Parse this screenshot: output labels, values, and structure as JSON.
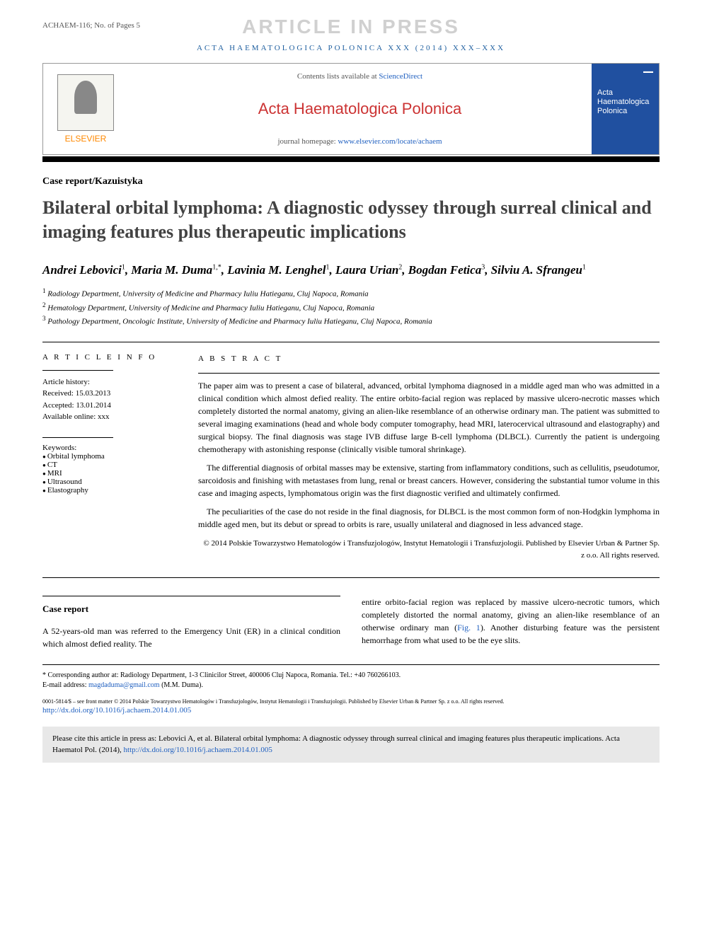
{
  "header": {
    "doc_id": "ACHAEM-116; No. of Pages 5",
    "watermark": "ARTICLE IN PRESS",
    "journal_ref": "ACTA HAEMATOLOGICA POLONICA XXX (2014) XXX–XXX",
    "contents_prefix": "Contents lists available at ",
    "contents_link": "ScienceDirect",
    "journal_title": "Acta Haematologica Polonica",
    "homepage_prefix": "journal homepage: ",
    "homepage_link": "www.elsevier.com/locate/achaem",
    "elsevier": "ELSEVIER",
    "cover_title": "Acta Haematologica Polonica"
  },
  "article": {
    "type": "Case report/Kazuistyka",
    "title": "Bilateral orbital lymphoma: A diagnostic odyssey through surreal clinical and imaging features plus therapeutic implications",
    "authors_html": "Andrei Lebovici<sup>1</sup>, Maria M. Duma<sup>1,*</sup>, Lavinia M. Lenghel<sup>1</sup>, Laura Urian<sup>2</sup>, Bogdan Fetica<sup>3</sup>, Silviu A. Sfrangeu<sup>1</sup>",
    "affiliations": [
      "Radiology Department, University of Medicine and Pharmacy Iuliu Hatieganu, Cluj Napoca, Romania",
      "Hematology Department, University of Medicine and Pharmacy Iuliu Hatieganu, Cluj Napoca, Romania",
      "Pathology Department, Oncologic Institute, University of Medicine and Pharmacy Iuliu Hatieganu, Cluj Napoca, Romania"
    ]
  },
  "info": {
    "heading": "A R T I C L E  I N F O",
    "history_label": "Article history:",
    "received": "Received: 15.03.2013",
    "accepted": "Accepted: 13.01.2014",
    "online": "Available online: xxx",
    "keywords_label": "Keywords:",
    "keywords": [
      "Orbital lymphoma",
      "CT",
      "MRI",
      "Ultrasound",
      "Elastography"
    ]
  },
  "abstract": {
    "heading": "A B S T R A C T",
    "p1": "The paper aim was to present a case of bilateral, advanced, orbital lymphoma diagnosed in a middle aged man who was admitted in a clinical condition which almost defied reality. The entire orbito-facial region was replaced by massive ulcero-necrotic masses which completely distorted the normal anatomy, giving an alien-like resemblance of an otherwise ordinary man. The patient was submitted to several imaging examinations (head and whole body computer tomography, head MRI, laterocervical ultrasound and elastography) and surgical biopsy. The final diagnosis was stage IVB diffuse large B-cell lymphoma (DLBCL). Currently the patient is undergoing chemotherapy with astonishing response (clinically visible tumoral shrinkage).",
    "p2": "The differential diagnosis of orbital masses may be extensive, starting from inflammatory conditions, such as cellulitis, pseudotumor, sarcoidosis and finishing with metastases from lung, renal or breast cancers. However, considering the substantial tumor volume in this case and imaging aspects, lymphomatous origin was the first diagnostic verified and ultimately confirmed.",
    "p3": "The peculiarities of the case do not reside in the final diagnosis, for DLBCL is the most common form of non-Hodgkin lymphoma in middle aged men, but its debut or spread to orbits is rare, usually unilateral and diagnosed in less advanced stage.",
    "copyright": "© 2014 Polskie Towarzystwo Hematologów i Transfuzjologów, Instytut Hematologii i Transfuzjologii. Published by Elsevier Urban & Partner Sp. z o.o. All rights reserved."
  },
  "body": {
    "section_heading": "Case report",
    "col1": "A 52-years-old man was referred to the Emergency Unit (ER) in a clinical condition which almost defied reality. The",
    "col2_pre": "entire orbito-facial region was replaced by massive ulcero-necrotic tumors, which completely distorted the normal anatomy, giving an alien-like resemblance of an otherwise ordinary man (",
    "fig_link": "Fig. 1",
    "col2_post": "). Another disturbing feature was the persistent hemorrhage from what used to be the eye slits."
  },
  "footer": {
    "corresponding_label": "* Corresponding author at:",
    "corresponding_text": " Radiology Department, 1-3 Clinicilor Street, 400006 Cluj Napoca, Romania. Tel.: +40 760266103.",
    "email_label": "E-mail address: ",
    "email": "magdaduma@gmail.com",
    "email_suffix": " (M.M. Duma).",
    "fine": "0001-5814/$ – see front matter © 2014 Polskie Towarzystwo Hematologów i Transfuzjologów, Instytut Hematologii i Transfuzjologii. Published by Elsevier Urban & Partner Sp. z o.o. All rights reserved.",
    "doi": "http://dx.doi.org/10.1016/j.achaem.2014.01.005"
  },
  "citebox": {
    "text_pre": "Please cite this article in press as: Lebovici A, et al. Bilateral orbital lymphoma: A diagnostic odyssey through surreal clinical and imaging features plus therapeutic implications. Acta Haematol Pol. (2014), ",
    "link": "http://dx.doi.org/10.1016/j.achaem.2014.01.005"
  },
  "colors": {
    "link": "#2060c0",
    "journal_red": "#cc3333",
    "elsevier_orange": "#ff8800",
    "watermark": "#d0d0d0",
    "cover_blue": "#2050a0",
    "citebox_bg": "#e8e8e8"
  }
}
